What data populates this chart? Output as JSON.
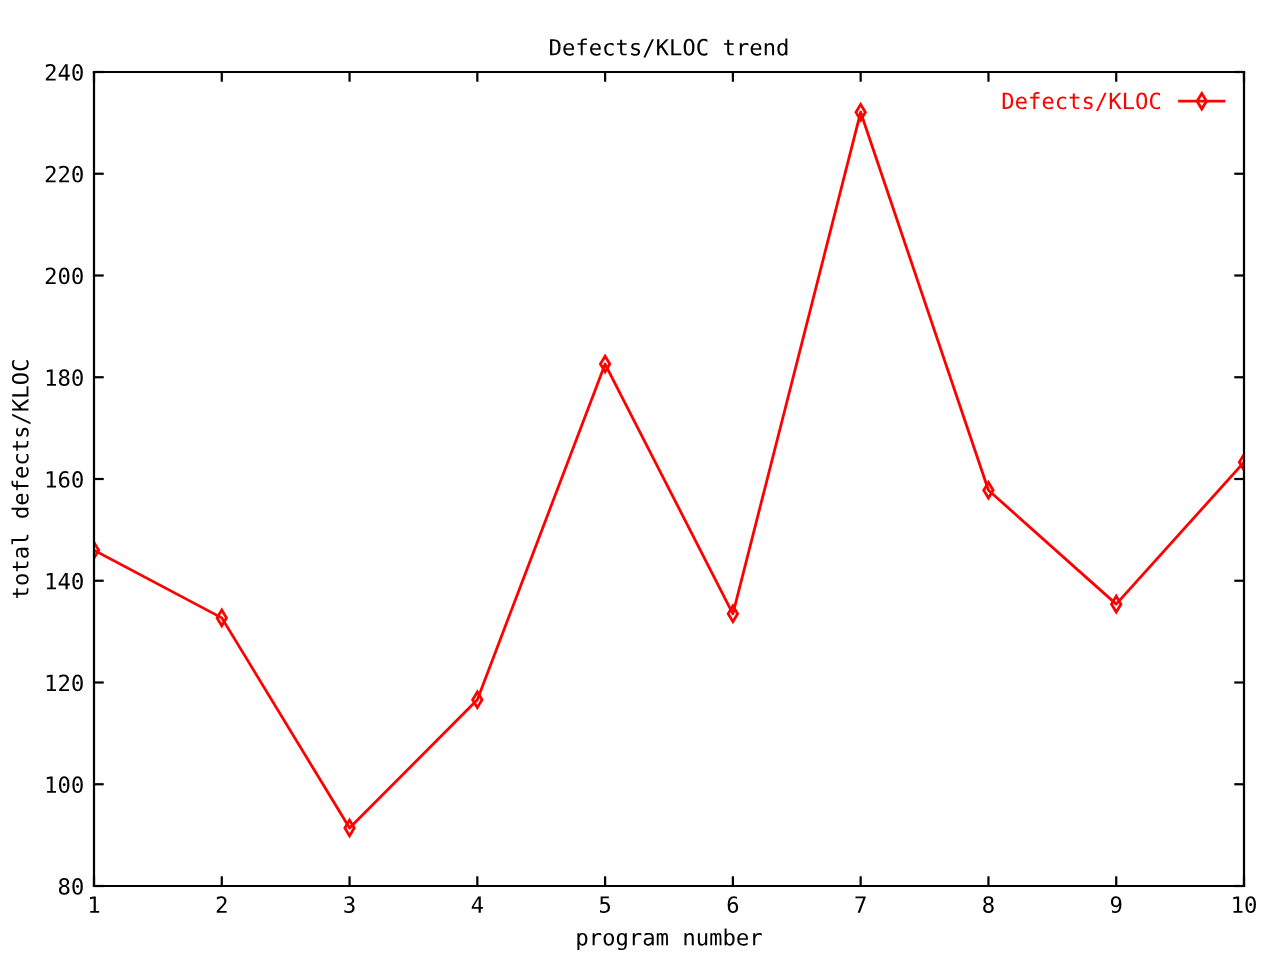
{
  "chart_data": {
    "type": "line",
    "title": "Defects/KLOC trend",
    "xlabel": "program number",
    "ylabel": "total defects/KLOC",
    "x": [
      1,
      2,
      3,
      4,
      5,
      6,
      7,
      8,
      9,
      10
    ],
    "series": [
      {
        "name": "Defects/KLOC",
        "color": "#ff0000",
        "values": [
          146,
          132.7,
          91.4,
          116.6,
          182.6,
          133.5,
          232.1,
          157.8,
          135.4,
          163.3
        ]
      }
    ],
    "xlim": [
      1,
      10
    ],
    "xticks": [
      1,
      2,
      3,
      4,
      5,
      6,
      7,
      8,
      9,
      10
    ],
    "ylim": [
      80,
      240
    ],
    "yticks": [
      80,
      100,
      120,
      140,
      160,
      180,
      200,
      220,
      240
    ],
    "grid": false,
    "legend": "top right",
    "marker": "diamond",
    "line_style": "solid"
  }
}
